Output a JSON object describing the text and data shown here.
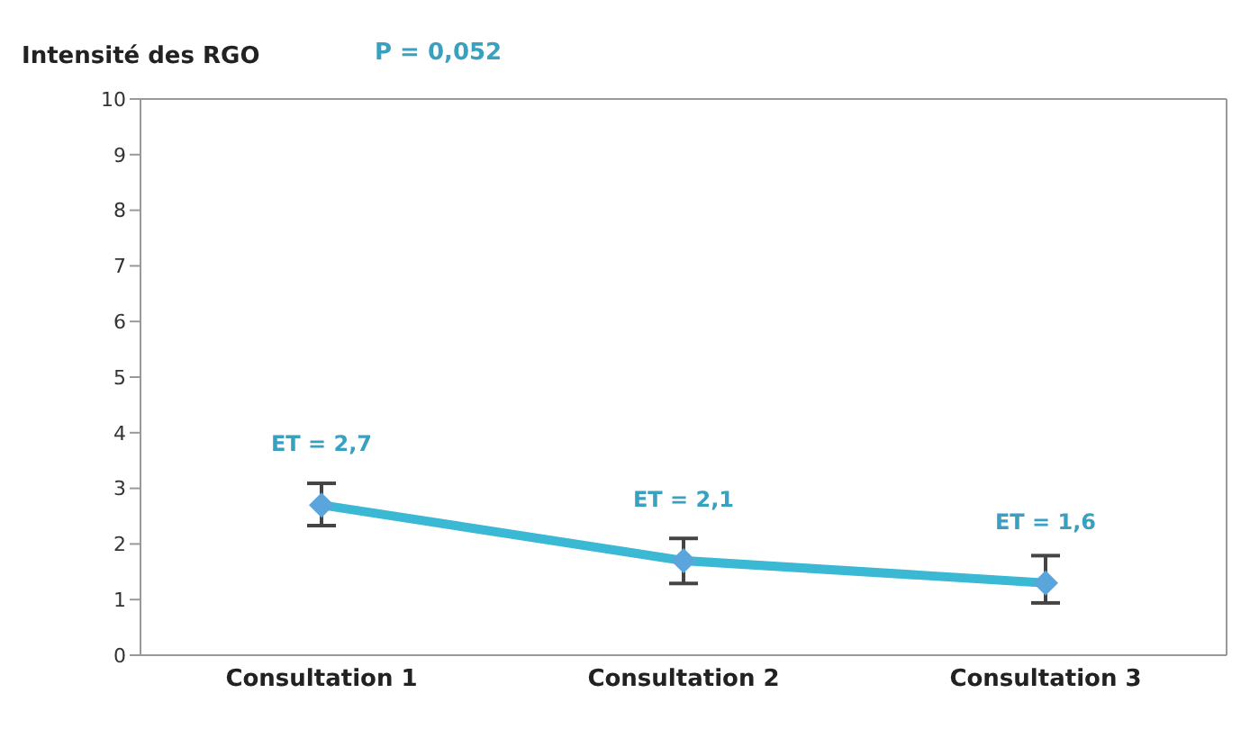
{
  "chart_data": {
    "type": "line",
    "ylabel": "Intensité des RGO",
    "categories": [
      "Consultation 1",
      "Consultation 2",
      "Consultation 3"
    ],
    "series": [
      {
        "color": "#3ab8d4",
        "values": [
          2.7,
          1.7,
          1.3
        ],
        "errors": [
          [
            2.33,
            3.09
          ],
          [
            1.29,
            2.1
          ],
          [
            0.94,
            1.79
          ]
        ]
      }
    ],
    "ylim": [
      0,
      10
    ],
    "yticks": [
      0,
      1,
      2,
      3,
      4,
      5,
      6,
      7,
      8,
      9,
      10
    ],
    "grid": false,
    "legend": false,
    "marker": "diamond",
    "line_style": "solid",
    "annotations": [
      "P = 0,052",
      {
        "text": "ET = 2,7",
        "x": "Consultation 1",
        "y": 2.7
      },
      {
        "text": "ET = 2,1",
        "x": "Consultation 2",
        "y": 1.7
      },
      {
        "text": "ET = 1,6",
        "x": "Consultation 3",
        "y": 1.3
      }
    ]
  }
}
